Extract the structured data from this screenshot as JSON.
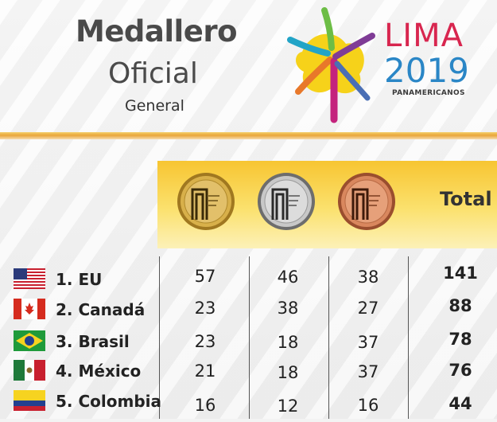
{
  "header": {
    "title_line1": "Medallero",
    "title_line2": "Oficial",
    "title_line3": "General",
    "brand_word": "LIMA",
    "brand_year": "2019",
    "brand_sub": "PANAMERICANOS"
  },
  "table": {
    "total_label": "Total",
    "medals": [
      {
        "name": "gold-medal",
        "color": "#caa23a"
      },
      {
        "name": "silver-medal",
        "color": "#b7b7b7"
      },
      {
        "name": "bronze-medal",
        "color": "#d98a66"
      }
    ],
    "rows": [
      {
        "label": "1. EU",
        "flag": "usa-flag",
        "gold": "57",
        "silver": "46",
        "bronze": "38",
        "total": "141"
      },
      {
        "label": "2. Canadá",
        "flag": "canada-flag",
        "gold": "23",
        "silver": "38",
        "bronze": "27",
        "total": "88"
      },
      {
        "label": "3. Brasil",
        "flag": "brazil-flag",
        "gold": "23",
        "silver": "18",
        "bronze": "37",
        "total": "78"
      },
      {
        "label": "4. México",
        "flag": "mexico-flag",
        "gold": "21",
        "silver": "18",
        "bronze": "37",
        "total": "76"
      },
      {
        "label": "5. Colombia",
        "flag": "colombia-flag",
        "gold": "16",
        "silver": "12",
        "bronze": "16",
        "total": "44"
      }
    ]
  },
  "colors": {
    "lima_red": "#d8264f",
    "lima_blue": "#2a86c6",
    "band_yellow": "#f7c531"
  }
}
